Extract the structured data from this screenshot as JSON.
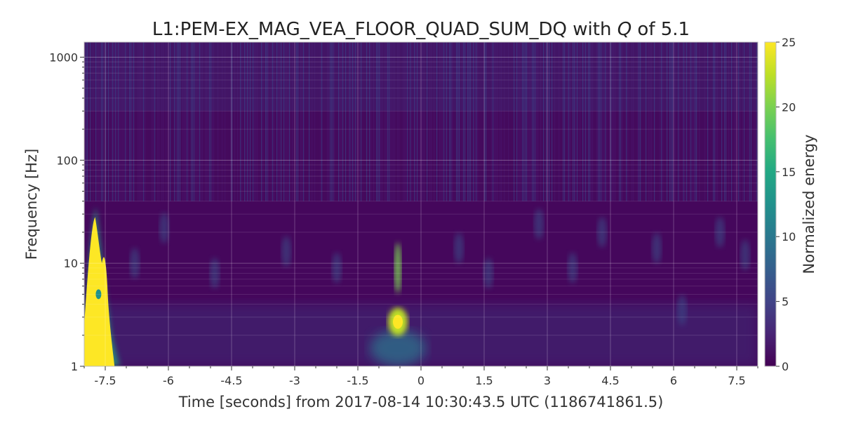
{
  "chart_data": {
    "type": "heatmap",
    "title_main": "L1:PEM-EX_MAG_VEA_FLOOR_QUAD_SUM_DQ with ",
    "title_italic": "Q",
    "title_tail": " of 5.1",
    "xlabel": "Time [seconds] from 2017-08-14 10:30:43.5 UTC (1186741861.5)",
    "ylabel": "Frequency [Hz]",
    "colorbar_label": "Normalized energy",
    "colormap": "viridis",
    "xlim": [
      -8,
      8
    ],
    "ylim": [
      1,
      1400
    ],
    "yscale": "log",
    "x_ticks": [
      -7.5,
      -6,
      -4.5,
      -3,
      -1.5,
      0,
      1.5,
      3,
      4.5,
      6,
      7.5
    ],
    "x_tick_labels": [
      "-7.5",
      "-6",
      "-4.5",
      "-3",
      "-1.5",
      "0",
      "1.5",
      "3",
      "4.5",
      "6",
      "7.5"
    ],
    "y_ticks": [
      1,
      10,
      100,
      1000
    ],
    "y_tick_labels": [
      "1",
      "10",
      "100",
      "1000"
    ],
    "clim": [
      0,
      25
    ],
    "colorbar_ticks": [
      0,
      5,
      10,
      15,
      20,
      25
    ],
    "colorbar_tick_labels": [
      "0",
      "5",
      "10",
      "15",
      "20",
      "25"
    ],
    "grid": true,
    "features": [
      {
        "t": -7.7,
        "f_low": 1,
        "f_high": 35,
        "energy": 25
      },
      {
        "t": -0.55,
        "f_low": 1,
        "f_high": 25,
        "energy": 22
      },
      {
        "t": -0.55,
        "f_center": 2.7,
        "energy": 25
      }
    ]
  }
}
